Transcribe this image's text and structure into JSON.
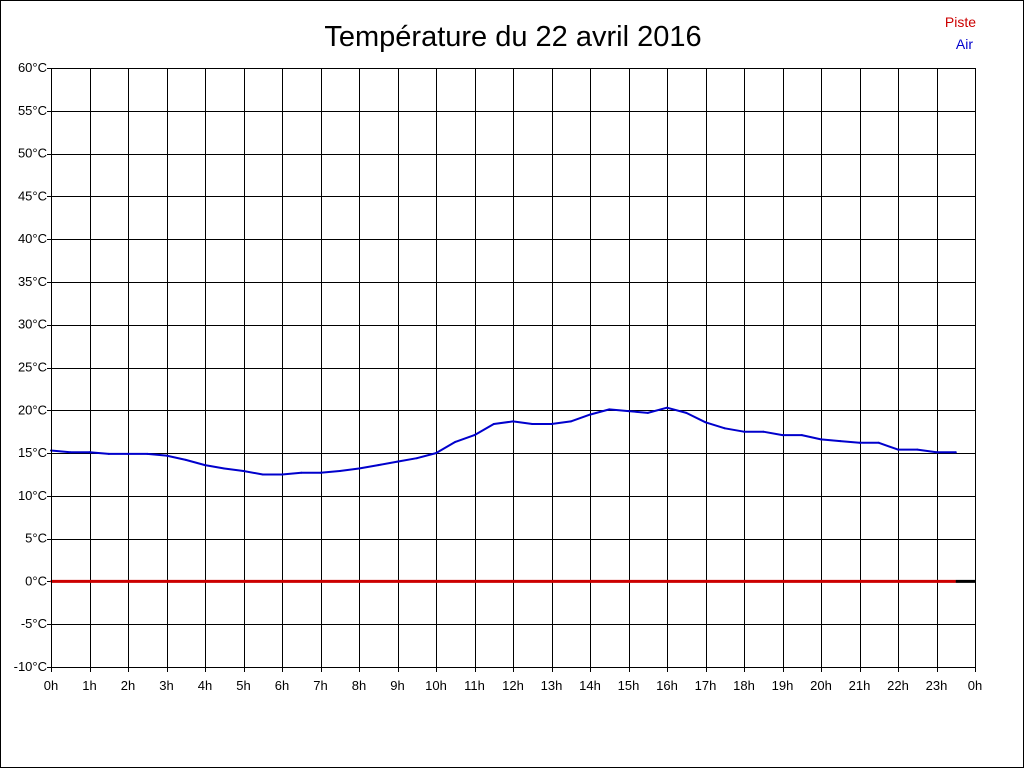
{
  "chart_data": {
    "type": "line",
    "title": "Température du 22 avril 2016",
    "xlabel": "",
    "ylabel": "",
    "xlim": [
      0,
      24
    ],
    "ylim": [
      -10,
      60
    ],
    "grid": true,
    "legend_position": "top-right",
    "x_ticks": [
      0,
      1,
      2,
      3,
      4,
      5,
      6,
      7,
      8,
      9,
      10,
      11,
      12,
      13,
      14,
      15,
      16,
      17,
      18,
      19,
      20,
      21,
      22,
      23,
      24
    ],
    "x_tick_labels": [
      "0h",
      "1h",
      "2h",
      "3h",
      "4h",
      "5h",
      "6h",
      "7h",
      "8h",
      "9h",
      "10h",
      "11h",
      "12h",
      "13h",
      "14h",
      "15h",
      "16h",
      "17h",
      "18h",
      "19h",
      "20h",
      "21h",
      "22h",
      "23h",
      "0h"
    ],
    "y_ticks": [
      60,
      55,
      50,
      45,
      40,
      35,
      30,
      25,
      20,
      15,
      10,
      5,
      0,
      -5,
      -10
    ],
    "y_tick_labels": [
      "60°C",
      "55°C",
      "50°C",
      "45°C",
      "40°C",
      "35°C",
      "30°C",
      "25°C",
      "20°C",
      "15°C",
      "10°C",
      "5°C",
      "0°C",
      "-5°C",
      "-10°C"
    ],
    "series": [
      {
        "name": "Piste",
        "color": "#cc0000",
        "x": [
          0,
          23.5
        ],
        "y": [
          0,
          0
        ]
      },
      {
        "name": "Air",
        "color": "#0000cc",
        "x": [
          0,
          0.5,
          1,
          1.5,
          2,
          2.5,
          3,
          3.5,
          4,
          4.5,
          5,
          5.5,
          6,
          6.5,
          7,
          7.5,
          8,
          8.5,
          9,
          9.5,
          10,
          10.5,
          11,
          11.5,
          12,
          12.5,
          13,
          13.5,
          14,
          14.5,
          15,
          15.5,
          16,
          16.5,
          17,
          17.5,
          18,
          18.5,
          19,
          19.5,
          20,
          20.5,
          21,
          21.5,
          22,
          22.5,
          23,
          23.5
        ],
        "y": [
          15.3,
          15.1,
          15.1,
          14.9,
          14.9,
          14.9,
          14.7,
          14.2,
          13.6,
          13.2,
          12.9,
          12.5,
          12.5,
          12.7,
          12.7,
          12.9,
          13.2,
          13.6,
          14.0,
          14.4,
          15.0,
          16.3,
          17.1,
          18.4,
          18.7,
          18.4,
          18.4,
          18.7,
          19.5,
          20.1,
          19.9,
          19.7,
          20.3,
          19.7,
          18.6,
          17.9,
          17.5,
          17.5,
          17.1,
          17.1,
          16.6,
          16.4,
          16.2,
          16.2,
          15.4,
          15.4,
          15.1,
          15.1
        ]
      }
    ],
    "baseline_stub": {
      "color": "#000000",
      "x": [
        23.5,
        24
      ],
      "y": [
        0,
        0
      ]
    }
  }
}
